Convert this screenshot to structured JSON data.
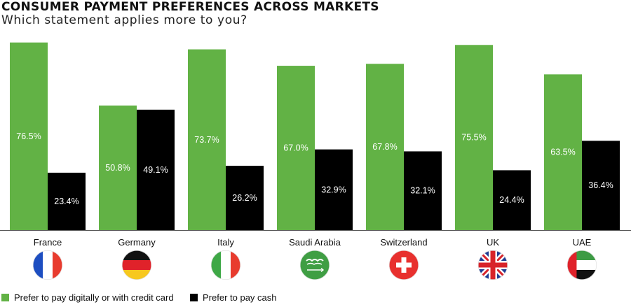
{
  "title": "CONSUMER PAYMENT PREFERENCES ACROSS MARKETS",
  "subtitle": "Which statement applies more to you?",
  "colors": {
    "digital": "#62b245",
    "cash": "#000000",
    "axis": "#555555"
  },
  "chart_data": {
    "type": "bar",
    "categories": [
      "France",
      "Germany",
      "Italy",
      "Saudi Arabia",
      "Switzerland",
      "UK",
      "UAE"
    ],
    "series": [
      {
        "name": "Prefer to pay digitally or with credit card",
        "values": [
          76.5,
          50.8,
          73.7,
          67.0,
          67.8,
          75.5,
          63.5
        ],
        "labels": [
          "76.5%",
          "50.8%",
          "73.7%",
          "67.0%",
          "67.8%",
          "75.5%",
          "63.5%"
        ]
      },
      {
        "name": "Prefer to pay cash",
        "values": [
          23.4,
          49.1,
          26.2,
          32.9,
          32.1,
          24.4,
          36.4
        ],
        "labels": [
          "23.4%",
          "49.1%",
          "26.2%",
          "32.9%",
          "32.1%",
          "24.4%",
          "36.4%"
        ]
      }
    ],
    "ylim": [
      0,
      77
    ],
    "grid": false,
    "legend": "bottom-left",
    "flag_icons": [
      "france-flag-icon",
      "germany-flag-icon",
      "italy-flag-icon",
      "saudi-arabia-flag-icon",
      "switzerland-flag-icon",
      "uk-flag-icon",
      "uae-flag-icon"
    ]
  },
  "legend": {
    "digital_label": "Prefer to pay digitally or with credit card",
    "cash_label": "Prefer to pay cash"
  }
}
